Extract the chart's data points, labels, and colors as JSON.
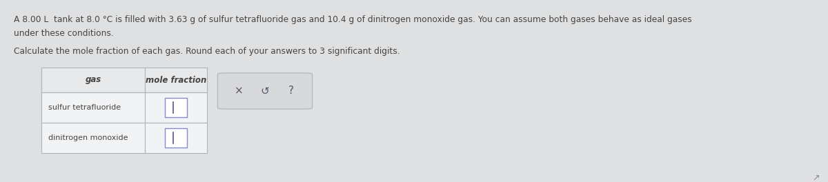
{
  "background_color": "#dfe0e2",
  "text_color": "#444444",
  "title_line1": "A 8.00 L  tank at 8.0 °C is filled with 3.63 g of sulfur tetrafluoride gas and 10.4 g of dinitrogen monoxide gas. You can assume both gases behave as ideal gases",
  "title_line2": "under these conditions.",
  "instruction": "Calculate the mole fraction of each gas. Round each of your answers to 3 significant digits.",
  "table_header_col1": "gas",
  "table_header_col2": "mole fraction",
  "table_row1": "sulfur tetrafluoride",
  "table_row2": "dinitrogen monoxide",
  "table_bg_header": "#e8e9eb",
  "table_bg_row": "#f2f3f4",
  "table_border_color": "#b0b2b5",
  "input_box_color": "#ffffff",
  "input_border_color": "#8888cc",
  "cursor_color": "#555588",
  "button_bg": "#d8d9db",
  "button_border": "#b8b9bb",
  "header_font_size": 8.8,
  "body_font_size": 8.5,
  "table_font_size": 8.5,
  "cursor_icon": "↗"
}
